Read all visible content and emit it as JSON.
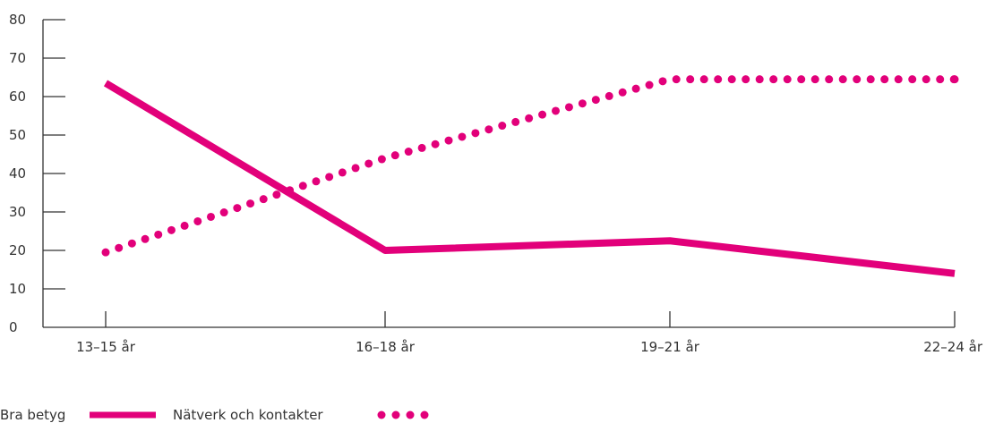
{
  "chart_data": {
    "type": "line",
    "title": "",
    "xlabel": "",
    "ylabel": "",
    "ylim": [
      0,
      80
    ],
    "yticks": [
      0,
      10,
      20,
      30,
      40,
      50,
      60,
      70,
      80
    ],
    "ytick_labels": [
      "0",
      "10",
      "20",
      "30",
      "40",
      "50",
      "60",
      "70",
      "80"
    ],
    "categories": [
      "13–15 år",
      "16–18 år",
      "19–21 år",
      "22–24 år"
    ],
    "grid": false,
    "legend_position": "bottom-left",
    "series": [
      {
        "name": "Bra betyg",
        "values": [
          63.5,
          20,
          22.5,
          14
        ],
        "style": "solid",
        "color": "#e2007a"
      },
      {
        "name": "Nätverk och kontakter",
        "values": [
          19.5,
          44,
          64.5,
          64.5
        ],
        "style": "dotted",
        "color": "#e2007a"
      }
    ]
  }
}
